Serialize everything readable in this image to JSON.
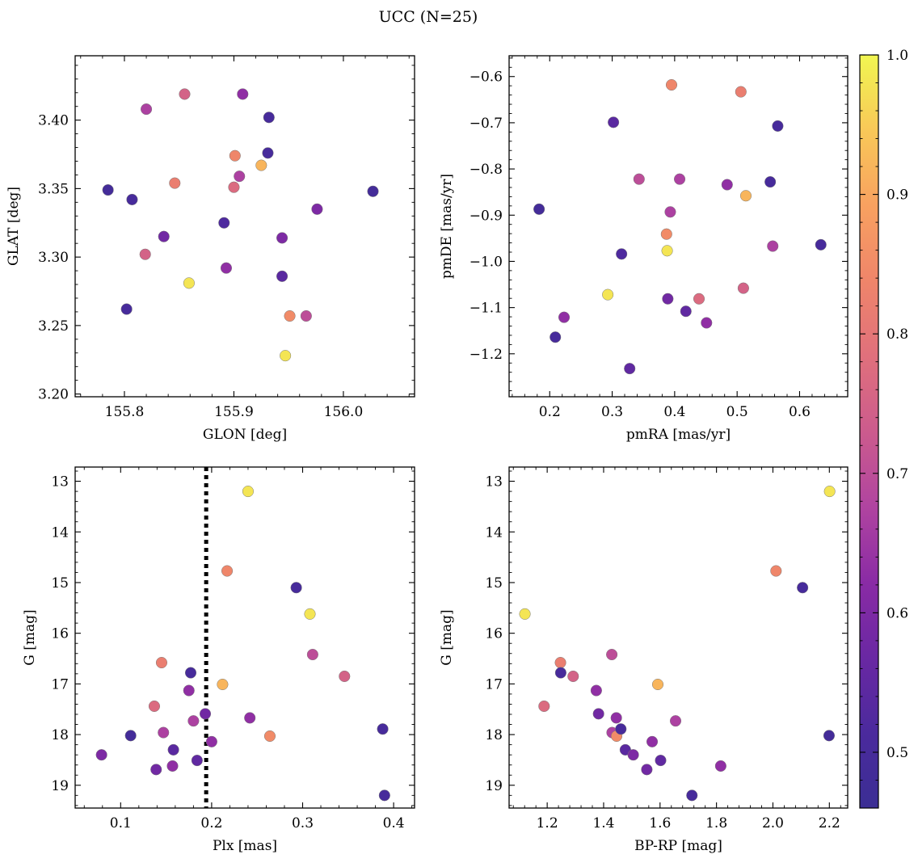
{
  "figure": {
    "title": "UCC (N=25)"
  },
  "colormap": {
    "name": "plasma",
    "range": [
      0.46,
      1.0
    ],
    "ticks": [
      0.5,
      0.6,
      0.7,
      0.8,
      0.9,
      1.0
    ],
    "tick_labels": [
      "0.5",
      "0.6",
      "0.7",
      "0.8",
      "0.9",
      "1.0"
    ]
  },
  "chart_data": [
    {
      "type": "scatter",
      "id": "glon-glat",
      "xlabel": "GLON [deg]",
      "ylabel": "GLAT [deg]",
      "xlim": [
        155.755,
        156.065
      ],
      "ylim": [
        3.198,
        3.447
      ],
      "y_inverted": false,
      "xticks": [
        155.8,
        155.9,
        156.0
      ],
      "xtick_labels": [
        "155.8",
        "155.9",
        "156.0"
      ],
      "yticks": [
        3.2,
        3.25,
        3.3,
        3.35,
        3.4
      ],
      "ytick_labels": [
        "3.20",
        "3.25",
        "3.30",
        "3.35",
        "3.40"
      ],
      "points": [
        {
          "x": 155.785,
          "y": 3.349,
          "c": 0.49
        },
        {
          "x": 155.807,
          "y": 3.342,
          "c": 0.5
        },
        {
          "x": 155.802,
          "y": 3.262,
          "c": 0.5
        },
        {
          "x": 155.82,
          "y": 3.408,
          "c": 0.67
        },
        {
          "x": 155.819,
          "y": 3.302,
          "c": 0.75
        },
        {
          "x": 155.836,
          "y": 3.315,
          "c": 0.58
        },
        {
          "x": 155.846,
          "y": 3.354,
          "c": 0.82
        },
        {
          "x": 155.855,
          "y": 3.419,
          "c": 0.75
        },
        {
          "x": 155.859,
          "y": 3.281,
          "c": 0.98
        },
        {
          "x": 155.891,
          "y": 3.325,
          "c": 0.52
        },
        {
          "x": 155.893,
          "y": 3.292,
          "c": 0.63
        },
        {
          "x": 155.9,
          "y": 3.351,
          "c": 0.77
        },
        {
          "x": 155.901,
          "y": 3.374,
          "c": 0.84
        },
        {
          "x": 155.905,
          "y": 3.359,
          "c": 0.67
        },
        {
          "x": 155.908,
          "y": 3.419,
          "c": 0.63
        },
        {
          "x": 155.925,
          "y": 3.367,
          "c": 0.92
        },
        {
          "x": 155.931,
          "y": 3.376,
          "c": 0.5
        },
        {
          "x": 155.932,
          "y": 3.402,
          "c": 0.5
        },
        {
          "x": 155.944,
          "y": 3.314,
          "c": 0.6
        },
        {
          "x": 155.944,
          "y": 3.286,
          "c": 0.54
        },
        {
          "x": 155.947,
          "y": 3.228,
          "c": 0.98
        },
        {
          "x": 155.951,
          "y": 3.257,
          "c": 0.85
        },
        {
          "x": 155.966,
          "y": 3.257,
          "c": 0.7
        },
        {
          "x": 155.976,
          "y": 3.335,
          "c": 0.6
        },
        {
          "x": 156.027,
          "y": 3.348,
          "c": 0.49
        }
      ]
    },
    {
      "type": "scatter",
      "id": "pmra-pmde",
      "xlabel": "pmRA [mas/yr]",
      "ylabel": "pmDE [mas/yr]",
      "xlim": [
        0.135,
        0.677
      ],
      "ylim": [
        -1.293,
        -0.555
      ],
      "y_inverted": false,
      "xticks": [
        0.2,
        0.3,
        0.4,
        0.5,
        0.6
      ],
      "xtick_labels": [
        "0.2",
        "0.3",
        "0.4",
        "0.5",
        "0.6"
      ],
      "yticks": [
        -1.2,
        -1.1,
        -1.0,
        -0.9,
        -0.8,
        -0.7,
        -0.6
      ],
      "ytick_labels": [
        "−1.2",
        "−1.1",
        "−1.0",
        "−0.9",
        "−0.8",
        "−0.7",
        "−0.6"
      ],
      "points": [
        {
          "x": 0.183,
          "y": -0.887,
          "c": 0.49
        },
        {
          "x": 0.209,
          "y": -1.164,
          "c": 0.5
        },
        {
          "x": 0.223,
          "y": -1.121,
          "c": 0.63
        },
        {
          "x": 0.293,
          "y": -1.072,
          "c": 0.98
        },
        {
          "x": 0.302,
          "y": -0.699,
          "c": 0.54
        },
        {
          "x": 0.315,
          "y": -0.984,
          "c": 0.52
        },
        {
          "x": 0.328,
          "y": -1.232,
          "c": 0.55
        },
        {
          "x": 0.343,
          "y": -0.822,
          "c": 0.7
        },
        {
          "x": 0.387,
          "y": -0.941,
          "c": 0.85
        },
        {
          "x": 0.388,
          "y": -0.977,
          "c": 0.98
        },
        {
          "x": 0.389,
          "y": -1.081,
          "c": 0.58
        },
        {
          "x": 0.393,
          "y": -0.893,
          "c": 0.67
        },
        {
          "x": 0.395,
          "y": -0.618,
          "c": 0.84
        },
        {
          "x": 0.408,
          "y": -0.822,
          "c": 0.67
        },
        {
          "x": 0.418,
          "y": -1.108,
          "c": 0.55
        },
        {
          "x": 0.439,
          "y": -1.081,
          "c": 0.77
        },
        {
          "x": 0.451,
          "y": -1.133,
          "c": 0.63
        },
        {
          "x": 0.484,
          "y": -0.834,
          "c": 0.63
        },
        {
          "x": 0.506,
          "y": -0.633,
          "c": 0.82
        },
        {
          "x": 0.51,
          "y": -1.058,
          "c": 0.75
        },
        {
          "x": 0.514,
          "y": -0.858,
          "c": 0.92
        },
        {
          "x": 0.553,
          "y": -0.828,
          "c": 0.5
        },
        {
          "x": 0.557,
          "y": -0.967,
          "c": 0.67
        },
        {
          "x": 0.565,
          "y": -0.707,
          "c": 0.5
        },
        {
          "x": 0.634,
          "y": -0.964,
          "c": 0.5
        }
      ]
    },
    {
      "type": "scatter",
      "id": "plx-g",
      "xlabel": "Plx [mas]",
      "ylabel": "G [mag]",
      "xlim": [
        0.05,
        0.423
      ],
      "ylim": [
        19.45,
        12.72
      ],
      "y_inverted": true,
      "xticks": [
        0.1,
        0.2,
        0.3,
        0.4
      ],
      "xtick_labels": [
        "0.1",
        "0.2",
        "0.3",
        "0.4"
      ],
      "yticks": [
        13,
        14,
        15,
        16,
        17,
        18,
        19
      ],
      "ytick_labels": [
        "13",
        "14",
        "15",
        "16",
        "17",
        "18",
        "19"
      ],
      "vline": {
        "x": 0.194,
        "style": "dotted"
      },
      "points": [
        {
          "x": 0.079,
          "y": 18.4,
          "c": 0.6
        },
        {
          "x": 0.111,
          "y": 18.02,
          "c": 0.49
        },
        {
          "x": 0.137,
          "y": 17.44,
          "c": 0.77
        },
        {
          "x": 0.139,
          "y": 18.69,
          "c": 0.58
        },
        {
          "x": 0.145,
          "y": 16.58,
          "c": 0.82
        },
        {
          "x": 0.147,
          "y": 17.96,
          "c": 0.67
        },
        {
          "x": 0.157,
          "y": 18.62,
          "c": 0.63
        },
        {
          "x": 0.158,
          "y": 18.3,
          "c": 0.54
        },
        {
          "x": 0.175,
          "y": 17.13,
          "c": 0.63
        },
        {
          "x": 0.177,
          "y": 16.78,
          "c": 0.5
        },
        {
          "x": 0.18,
          "y": 17.73,
          "c": 0.67
        },
        {
          "x": 0.184,
          "y": 18.51,
          "c": 0.55
        },
        {
          "x": 0.193,
          "y": 17.59,
          "c": 0.58
        },
        {
          "x": 0.2,
          "y": 18.14,
          "c": 0.63
        },
        {
          "x": 0.212,
          "y": 17.01,
          "c": 0.92
        },
        {
          "x": 0.217,
          "y": 14.77,
          "c": 0.84
        },
        {
          "x": 0.24,
          "y": 13.2,
          "c": 0.98
        },
        {
          "x": 0.242,
          "y": 17.67,
          "c": 0.63
        },
        {
          "x": 0.264,
          "y": 18.03,
          "c": 0.85
        },
        {
          "x": 0.293,
          "y": 15.1,
          "c": 0.5
        },
        {
          "x": 0.308,
          "y": 15.62,
          "c": 0.98
        },
        {
          "x": 0.311,
          "y": 16.42,
          "c": 0.7
        },
        {
          "x": 0.346,
          "y": 16.85,
          "c": 0.75
        },
        {
          "x": 0.388,
          "y": 17.89,
          "c": 0.5
        },
        {
          "x": 0.39,
          "y": 19.2,
          "c": 0.5
        }
      ]
    },
    {
      "type": "scatter",
      "id": "bprp-g",
      "xlabel": "BP-RP [mag]",
      "ylabel": "G [mag]",
      "xlim": [
        1.065,
        2.265
      ],
      "ylim": [
        19.45,
        12.72
      ],
      "y_inverted": true,
      "xticks": [
        1.2,
        1.4,
        1.6,
        1.8,
        2.0,
        2.2
      ],
      "xtick_labels": [
        "1.2",
        "1.4",
        "1.6",
        "1.8",
        "2.0",
        "2.2"
      ],
      "yticks": [
        13,
        14,
        15,
        16,
        17,
        18,
        19
      ],
      "ytick_labels": [
        "13",
        "14",
        "15",
        "16",
        "17",
        "18",
        "19"
      ],
      "points": [
        {
          "x": 1.121,
          "y": 15.62,
          "c": 0.98
        },
        {
          "x": 1.189,
          "y": 17.44,
          "c": 0.77
        },
        {
          "x": 1.247,
          "y": 16.58,
          "c": 0.82
        },
        {
          "x": 1.248,
          "y": 16.78,
          "c": 0.5
        },
        {
          "x": 1.292,
          "y": 16.85,
          "c": 0.75
        },
        {
          "x": 1.374,
          "y": 17.13,
          "c": 0.63
        },
        {
          "x": 1.382,
          "y": 17.59,
          "c": 0.58
        },
        {
          "x": 1.429,
          "y": 16.42,
          "c": 0.7
        },
        {
          "x": 1.43,
          "y": 17.96,
          "c": 0.67
        },
        {
          "x": 1.445,
          "y": 17.67,
          "c": 0.63
        },
        {
          "x": 1.446,
          "y": 18.03,
          "c": 0.85
        },
        {
          "x": 1.461,
          "y": 17.89,
          "c": 0.5
        },
        {
          "x": 1.477,
          "y": 18.3,
          "c": 0.54
        },
        {
          "x": 1.505,
          "y": 18.4,
          "c": 0.6
        },
        {
          "x": 1.553,
          "y": 18.69,
          "c": 0.58
        },
        {
          "x": 1.572,
          "y": 18.14,
          "c": 0.63
        },
        {
          "x": 1.592,
          "y": 17.01,
          "c": 0.92
        },
        {
          "x": 1.602,
          "y": 18.51,
          "c": 0.55
        },
        {
          "x": 1.655,
          "y": 17.73,
          "c": 0.67
        },
        {
          "x": 1.713,
          "y": 19.2,
          "c": 0.5
        },
        {
          "x": 1.815,
          "y": 18.62,
          "c": 0.63
        },
        {
          "x": 2.011,
          "y": 14.77,
          "c": 0.84
        },
        {
          "x": 2.105,
          "y": 15.1,
          "c": 0.5
        },
        {
          "x": 2.201,
          "y": 13.2,
          "c": 0.98
        },
        {
          "x": 2.199,
          "y": 18.02,
          "c": 0.49
        }
      ]
    }
  ]
}
